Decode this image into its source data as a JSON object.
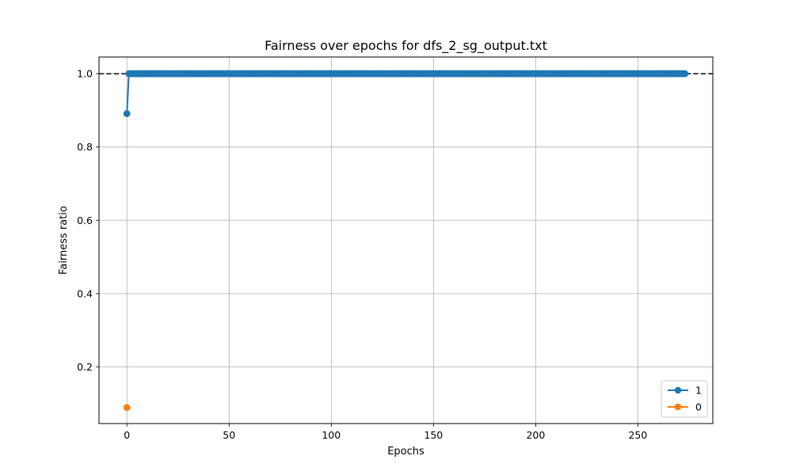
{
  "chart_data": {
    "type": "line",
    "title": "Fairness over epochs for dfs_2_sg_output.txt",
    "xlabel": "Epochs",
    "ylabel": "Fairness ratio",
    "xlim": [
      -13.65,
      286.65
    ],
    "ylim": [
      0.0455,
      1.0455
    ],
    "x_ticks": [
      0,
      50,
      100,
      150,
      200,
      250
    ],
    "x_tick_labels": [
      "0",
      "50",
      "100",
      "150",
      "200",
      "250"
    ],
    "y_ticks": [
      0.2,
      0.4,
      0.6,
      0.8,
      1.0
    ],
    "y_tick_labels": [
      "0.2",
      "0.4",
      "0.6",
      "0.8",
      "1.0"
    ],
    "grid": true,
    "legend_position": "lower-right",
    "reference_line": {
      "y": 1.0,
      "style": "dashed",
      "color": "#000000"
    },
    "series": [
      {
        "name": "1",
        "color": "#1f77b4",
        "marker": "circle",
        "start_x": 0,
        "end_x": 273,
        "step": 1,
        "values_override": {
          "0": 0.891
        },
        "default_value": 1.0
      },
      {
        "name": "0",
        "color": "#ff7f0e",
        "marker": "circle",
        "x": [
          0
        ],
        "values": [
          0.089
        ]
      }
    ]
  }
}
